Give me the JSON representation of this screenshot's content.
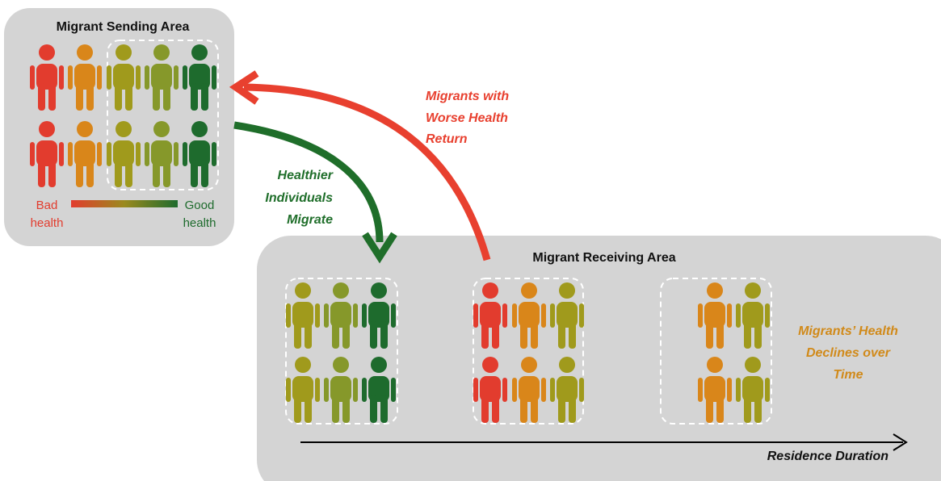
{
  "sending_area": {
    "title": "Migrant Sending Area",
    "legend": {
      "low": [
        "Bad",
        "health"
      ],
      "high": [
        "Good",
        "health"
      ]
    }
  },
  "flows": [
    {
      "label": [
        "Healthier",
        "Individuals",
        "Migrate"
      ]
    },
    {
      "label": [
        "Migrants with",
        "Worse Health",
        "Return"
      ]
    }
  ],
  "receiving_area": {
    "title": "Migrant Receiving Area",
    "note": [
      "Migrants’ Health",
      "Declines over",
      "Time"
    ],
    "axis_label": "Residence Duration"
  }
}
